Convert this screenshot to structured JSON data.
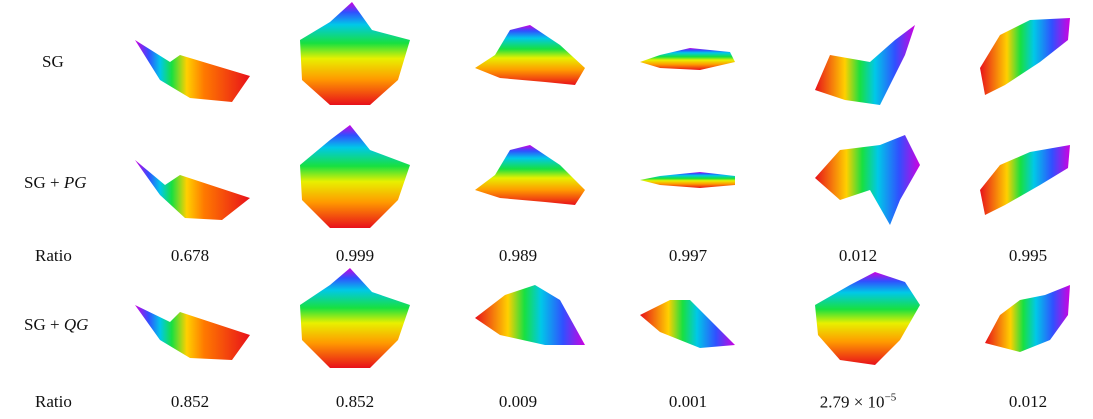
{
  "rows": {
    "sg": {
      "label": "SG"
    },
    "pg": {
      "label": {
        "prefix": "SG +",
        "math": "PG"
      }
    },
    "ratio_pg": {
      "label": "Ratio",
      "values": [
        "0.678",
        "0.999",
        "0.989",
        "0.997",
        "0.012",
        "0.995"
      ]
    },
    "qg": {
      "label": {
        "prefix": "SG +",
        "math": "QG"
      }
    },
    "ratio_qg": {
      "label": "Ratio",
      "values": [
        "0.852",
        "0.852",
        "0.009",
        "0.001",
        {
          "mantissa": "2.79 × 10",
          "exponent": "−5"
        },
        "0.012"
      ]
    }
  }
}
